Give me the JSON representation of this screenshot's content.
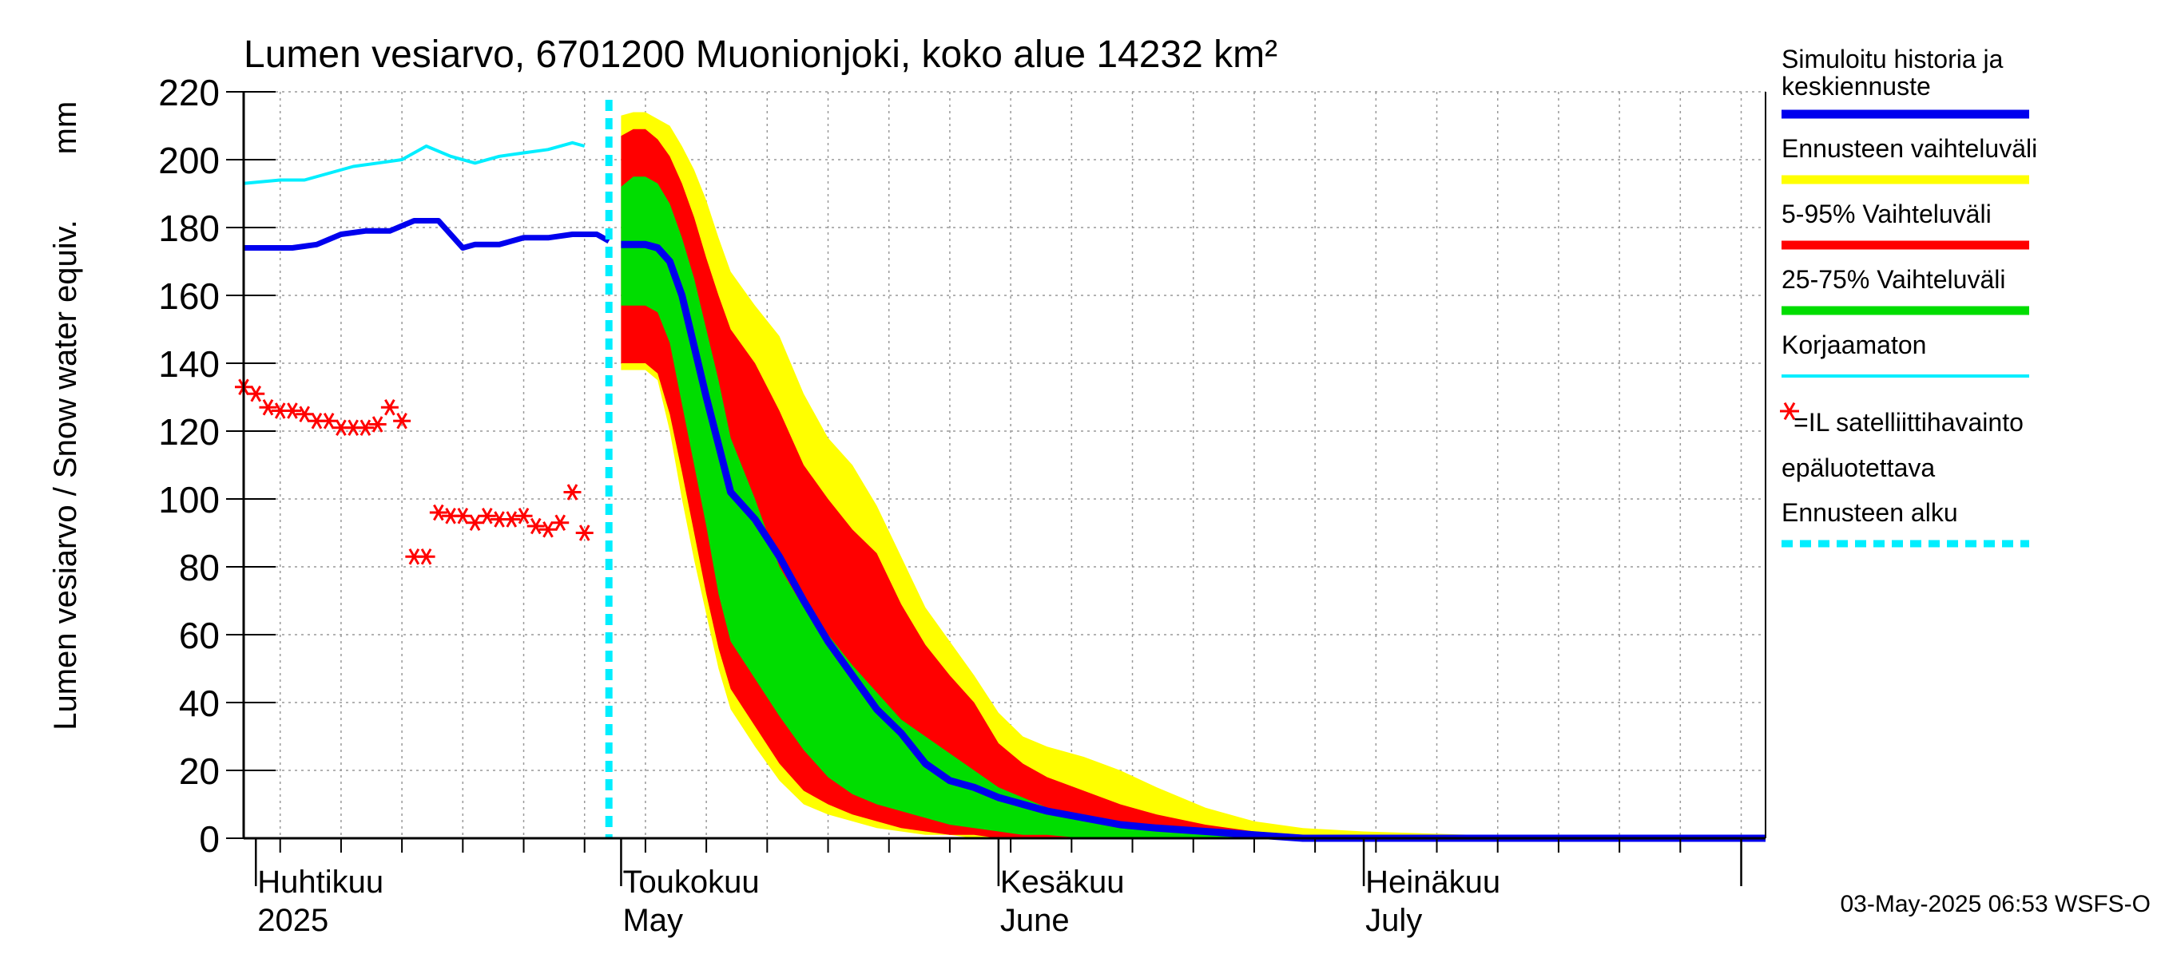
{
  "chart_data": {
    "type": "area",
    "title": "Lumen vesiarvo, 6701200 Muonionjoki, koko alue 14232 km²",
    "ylabel": "Lumen vesiarvo / Snow water equiv.",
    "yunit": "mm",
    "ylim": [
      0,
      220
    ],
    "y_ticks": [
      0,
      20,
      40,
      60,
      80,
      100,
      120,
      140,
      160,
      180,
      200,
      220
    ],
    "xlim": [
      "2025-03-31",
      "2025-08-03"
    ],
    "grid": true,
    "legend_position": "right",
    "x_tick_labels": [
      {
        "date": "2025-04-01",
        "line1": "Huhtikuu",
        "line2": "2025"
      },
      {
        "date": "2025-05-01",
        "line1": "Toukokuu",
        "line2": "May"
      },
      {
        "date": "2025-06-01",
        "line1": "Kesäkuu",
        "line2": "June"
      },
      {
        "date": "2025-07-01",
        "line1": "Heinäkuu",
        "line2": "July"
      }
    ],
    "forecast_start": "2025-04-30",
    "timestamp": "03-May-2025 06:53 WSFS-O",
    "legend": [
      {
        "key": "sim",
        "label1": "Simuloitu historia ja",
        "label2": "keskiennuste",
        "color": "#0000ee",
        "style": "line"
      },
      {
        "key": "range",
        "label1": "Ennusteen vaihteluväli",
        "color": "#ffff00",
        "style": "line"
      },
      {
        "key": "p5_95",
        "label1": "5-95% Vaihteluväli",
        "color": "#ff0000",
        "style": "line"
      },
      {
        "key": "p25_75",
        "label1": "25-75% Vaihteluväli",
        "color": "#00dd00",
        "style": "line"
      },
      {
        "key": "raw",
        "label1": "Korjaamaton",
        "color": "#00eeff",
        "style": "line"
      },
      {
        "key": "sat",
        "label1": "=IL satelliittihavainto",
        "label2": "epäluotettava",
        "color": "#ff0000",
        "style": "star"
      },
      {
        "key": "fstart",
        "label1": "Ennusteen alku",
        "color": "#00eeff",
        "style": "dash"
      }
    ],
    "forecast_dates": [
      "2025-05-01",
      "2025-05-02",
      "2025-05-03",
      "2025-05-04",
      "2025-05-05",
      "2025-05-06",
      "2025-05-07",
      "2025-05-08",
      "2025-05-09",
      "2025-05-10",
      "2025-05-12",
      "2025-05-14",
      "2025-05-16",
      "2025-05-18",
      "2025-05-20",
      "2025-05-22",
      "2025-05-24",
      "2025-05-26",
      "2025-05-28",
      "2025-05-30",
      "2025-06-01",
      "2025-06-03",
      "2025-06-05",
      "2025-06-08",
      "2025-06-11",
      "2025-06-14",
      "2025-06-18",
      "2025-06-22",
      "2025-06-26",
      "2025-07-01",
      "2025-07-10",
      "2025-08-03"
    ],
    "range_upper": [
      213,
      214,
      214,
      212,
      210,
      204,
      197,
      188,
      177,
      167,
      157,
      148,
      131,
      118,
      110,
      98,
      83,
      68,
      58,
      48,
      37,
      30,
      27,
      24,
      20,
      15,
      9,
      5,
      3,
      2,
      1,
      0
    ],
    "p95": [
      207,
      209,
      209,
      206,
      201,
      193,
      183,
      171,
      160,
      150,
      140,
      126,
      110,
      100,
      91,
      84,
      69,
      57,
      48,
      40,
      28,
      22,
      18,
      14,
      10,
      7,
      4,
      2,
      1,
      1,
      0,
      0
    ],
    "p75": [
      192,
      195,
      195,
      193,
      187,
      177,
      165,
      150,
      135,
      118,
      100,
      80,
      68,
      60,
      51,
      43,
      35,
      30,
      25,
      20,
      15,
      12,
      9,
      7,
      5,
      3,
      2,
      1,
      0,
      0,
      0,
      0
    ],
    "p25": [
      157,
      157,
      157,
      155,
      146,
      128,
      110,
      92,
      72,
      58,
      47,
      36,
      26,
      18,
      13,
      10,
      8,
      6,
      4,
      3,
      2,
      1,
      1,
      0,
      0,
      0,
      0,
      0,
      0,
      0,
      0,
      0
    ],
    "p5": [
      140,
      140,
      140,
      137,
      125,
      108,
      90,
      72,
      56,
      44,
      33,
      22,
      14,
      10,
      7,
      5,
      3,
      2,
      1,
      1,
      0,
      0,
      0,
      0,
      0,
      0,
      0,
      0,
      0,
      0,
      0,
      0
    ],
    "range_lower": [
      138,
      138,
      138,
      135,
      120,
      100,
      82,
      66,
      50,
      38,
      27,
      17,
      10,
      7,
      5,
      3,
      2,
      1,
      1,
      0,
      0,
      0,
      0,
      0,
      0,
      0,
      0,
      0,
      0,
      0,
      0,
      0
    ],
    "mean_forecast": [
      175,
      175,
      175,
      174,
      170,
      160,
      145,
      130,
      116,
      102,
      94,
      83,
      70,
      58,
      48,
      38,
      31,
      22,
      17,
      15,
      12,
      10,
      8,
      6,
      4,
      3,
      2,
      1,
      0,
      0,
      0,
      0
    ],
    "series": [
      {
        "name": "Simuloitu historia ja keskiennuste",
        "color": "#0000ee",
        "x": [
          "2025-03-31",
          "2025-04-02",
          "2025-04-04",
          "2025-04-06",
          "2025-04-08",
          "2025-04-10",
          "2025-04-12",
          "2025-04-14",
          "2025-04-16",
          "2025-04-18",
          "2025-04-19",
          "2025-04-21",
          "2025-04-23",
          "2025-04-25",
          "2025-04-27",
          "2025-04-28",
          "2025-04-29",
          "2025-04-30"
        ],
        "values": [
          174,
          174,
          174,
          175,
          178,
          179,
          179,
          182,
          182,
          174,
          175,
          175,
          177,
          177,
          178,
          178,
          178,
          176
        ]
      },
      {
        "name": "Korjaamaton",
        "color": "#00eeff",
        "x": [
          "2025-03-31",
          "2025-04-03",
          "2025-04-05",
          "2025-04-07",
          "2025-04-09",
          "2025-04-11",
          "2025-04-13",
          "2025-04-15",
          "2025-04-17",
          "2025-04-19",
          "2025-04-21",
          "2025-04-23",
          "2025-04-25",
          "2025-04-27",
          "2025-04-28"
        ],
        "values": [
          193,
          194,
          194,
          196,
          198,
          199,
          200,
          204,
          201,
          199,
          201,
          202,
          203,
          205,
          204
        ]
      }
    ],
    "satellite_obs": {
      "x": [
        "2025-03-31",
        "2025-04-01",
        "2025-04-02",
        "2025-04-03",
        "2025-04-04",
        "2025-04-05",
        "2025-04-06",
        "2025-04-07",
        "2025-04-08",
        "2025-04-09",
        "2025-04-10",
        "2025-04-11",
        "2025-04-12",
        "2025-04-13",
        "2025-04-14",
        "2025-04-15",
        "2025-04-16",
        "2025-04-17",
        "2025-04-18",
        "2025-04-19",
        "2025-04-20",
        "2025-04-21",
        "2025-04-22",
        "2025-04-23",
        "2025-04-24",
        "2025-04-25",
        "2025-04-26",
        "2025-04-27",
        "2025-04-28"
      ],
      "values": [
        133,
        131,
        127,
        126,
        126,
        125,
        123,
        123,
        121,
        121,
        121,
        122,
        127,
        123,
        83,
        83,
        96,
        95,
        95,
        93,
        95,
        94,
        94,
        95,
        92,
        91,
        93,
        102,
        90
      ]
    }
  }
}
